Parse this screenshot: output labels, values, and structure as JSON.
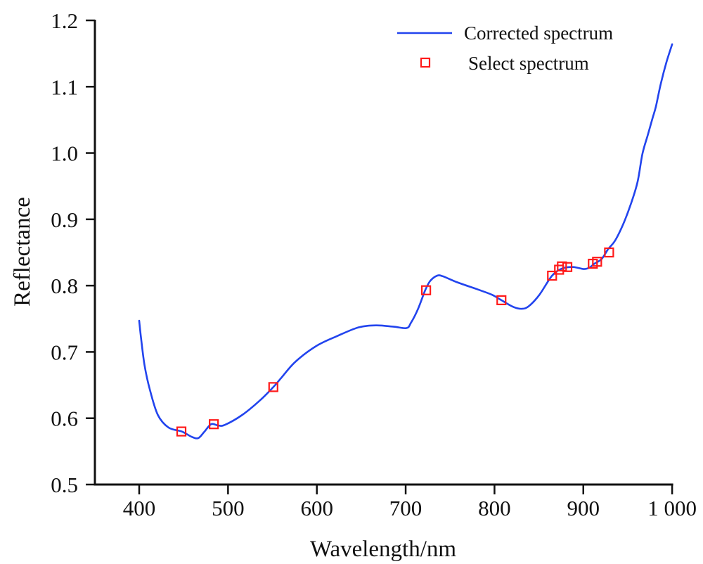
{
  "chart_data": {
    "type": "line",
    "title": "",
    "xlabel": "Wavelength/nm",
    "ylabel": "Reflectance",
    "xlim": [
      350,
      1000
    ],
    "ylim": [
      0.5,
      1.2
    ],
    "x_ticks": [
      400,
      500,
      600,
      700,
      800,
      900,
      1000
    ],
    "x_tick_labels": [
      "400",
      "500",
      "600",
      "700",
      "800",
      "900",
      "1 000"
    ],
    "y_ticks": [
      0.5,
      0.6,
      0.7,
      0.8,
      0.9,
      1.0,
      1.1,
      1.2
    ],
    "y_tick_labels": [
      "0.5",
      "0.6",
      "0.7",
      "0.8",
      "0.9",
      "1.0",
      "1.1",
      "1.2"
    ],
    "grid": false,
    "legend_position": "top-right",
    "colors": {
      "line": "#2244ee",
      "marker": "#ff1a1a",
      "axis": "#111111"
    },
    "series": [
      {
        "name": "Corrected spectrum",
        "kind": "line",
        "x": [
          400,
          402,
          406,
          412,
          421,
          433,
          448,
          459,
          466.5,
          473,
          481,
          489,
          496.6,
          516,
          536,
          551,
          560,
          575.7,
          599.5,
          623,
          647,
          667,
          686.6,
          701,
          706,
          714,
          722,
          727.6,
          735.5,
          742,
          758,
          781.6,
          797.5,
          807.8,
          821,
          830.7,
          838.6,
          850.5,
          864.8,
          876.6,
          888.5,
          900.4,
          906.7,
          912.5,
          920.5,
          927.9,
          935.8,
          945,
          953,
          961,
          966.6,
          972.8,
          977.8,
          981.7,
          987.3,
          993.6,
          1000
        ],
        "values": [
          0.747,
          0.722,
          0.68,
          0.643,
          0.605,
          0.586,
          0.58,
          0.572,
          0.57,
          0.579,
          0.591,
          0.589,
          0.59,
          0.605,
          0.627,
          0.647,
          0.661,
          0.685,
          0.709,
          0.724,
          0.737,
          0.74,
          0.738,
          0.736,
          0.744,
          0.765,
          0.793,
          0.807,
          0.815,
          0.814,
          0.805,
          0.794,
          0.786,
          0.778,
          0.768,
          0.765,
          0.769,
          0.786,
          0.815,
          0.826,
          0.828,
          0.825,
          0.827,
          0.833,
          0.84,
          0.855,
          0.868,
          0.893,
          0.921,
          0.956,
          0.999,
          1.028,
          1.052,
          1.07,
          1.105,
          1.137,
          1.164
        ]
      },
      {
        "name": "Select spectrum",
        "kind": "scatter",
        "marker": "square",
        "x": [
          447.5,
          484,
          551,
          723,
          807.8,
          864.8,
          872.7,
          875.9,
          882,
          910.7,
          915.5,
          929
        ],
        "values": [
          0.58,
          0.591,
          0.647,
          0.793,
          0.778,
          0.815,
          0.824,
          0.829,
          0.828,
          0.833,
          0.836,
          0.85
        ]
      }
    ]
  }
}
